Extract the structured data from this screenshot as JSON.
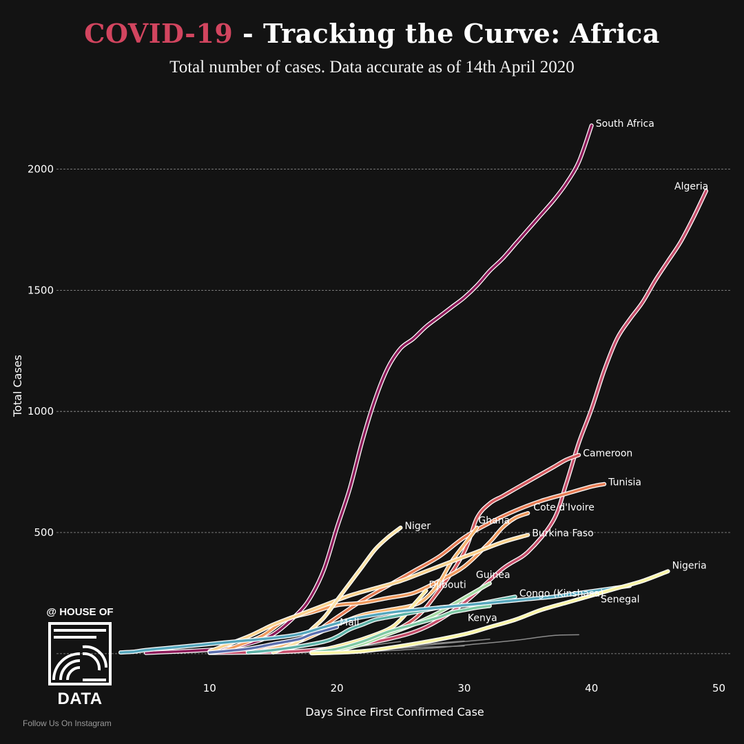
{
  "header": {
    "title_red": "COVID-19",
    "title_rest": " - Tracking the Curve: Africa",
    "subtitle": "Total number of cases. Data accurate as of 14th April 2020"
  },
  "branding": {
    "logo_top": "@ HOUSE OF",
    "logo_bottom": "DATA",
    "follow": "Follow Us On Instagram"
  },
  "chart_data": {
    "type": "line",
    "xlabel": "Days Since First Confirmed Case",
    "ylabel": "Total Cases",
    "xlim": [
      1,
      51
    ],
    "ylim": [
      -80,
      2300
    ],
    "xticks": [
      10,
      20,
      30,
      40,
      50
    ],
    "yticks": [
      500,
      1000,
      1500,
      2000
    ],
    "grid": "horizontal dashed",
    "series": [
      {
        "name": "Grey 1",
        "color": "#8c8c8c",
        "width": 1.5,
        "labeled": false,
        "x": [
          18,
          22,
          25,
          28,
          31,
          34,
          37,
          39
        ],
        "y": [
          2,
          8,
          15,
          25,
          40,
          55,
          75,
          78
        ]
      },
      {
        "name": "Grey 2",
        "color": "#8c8c8c",
        "width": 1.5,
        "labeled": false,
        "x": [
          18,
          21,
          24,
          27,
          30,
          32
        ],
        "y": [
          3,
          10,
          20,
          35,
          50,
          60
        ]
      },
      {
        "name": "Grey 3",
        "color": "#8c8c8c",
        "width": 1.5,
        "labeled": false,
        "x": [
          18,
          21,
          24,
          27,
          30
        ],
        "y": [
          4,
          12,
          25,
          40,
          52
        ]
      },
      {
        "name": "Grey 4",
        "color": "#8c8c8c",
        "width": 1.5,
        "labeled": false,
        "x": [
          19,
          22,
          25
        ],
        "y": [
          10,
          30,
          50
        ]
      },
      {
        "name": "Grey 5",
        "color": "#8c8c8c",
        "width": 1.5,
        "labeled": false,
        "x": [
          20,
          23,
          26,
          29,
          30
        ],
        "y": [
          5,
          15,
          25,
          30,
          32
        ]
      },
      {
        "name": "South Africa",
        "color": "#8e1b5a",
        "width": 3.5,
        "labeled": true,
        "label_dx": 6,
        "label_dy": 2,
        "x": [
          5,
          8,
          11,
          13,
          15,
          17,
          18,
          19,
          20,
          21,
          22,
          23,
          24,
          25,
          26,
          27,
          28,
          29,
          30,
          31,
          32,
          33,
          34,
          35,
          36,
          37,
          38,
          39,
          40
        ],
        "y": [
          3,
          10,
          20,
          40,
          80,
          170,
          240,
          350,
          520,
          680,
          880,
          1050,
          1180,
          1260,
          1300,
          1350,
          1390,
          1430,
          1470,
          1520,
          1580,
          1630,
          1690,
          1750,
          1810,
          1870,
          1940,
          2030,
          2180
        ]
      },
      {
        "name": "Algeria",
        "color": "#c64e6b",
        "width": 3.5,
        "labeled": true,
        "label_dx": -46,
        "label_dy": -2,
        "x": [
          10,
          16,
          20,
          24,
          27,
          30,
          33,
          35,
          37,
          38,
          39,
          40,
          41,
          42,
          43,
          44,
          45,
          46,
          47,
          48,
          49
        ],
        "y": [
          3,
          8,
          25,
          60,
          110,
          210,
          350,
          420,
          550,
          700,
          870,
          1010,
          1170,
          1300,
          1380,
          1450,
          1540,
          1620,
          1700,
          1800,
          1910
        ]
      },
      {
        "name": "Cameroon",
        "color": "#d45a5f",
        "width": 3.5,
        "labeled": true,
        "label_dx": 6,
        "label_dy": 2,
        "x": [
          20,
          23,
          26,
          28,
          30,
          31,
          32,
          33,
          34,
          35,
          36,
          37,
          38,
          39
        ],
        "y": [
          10,
          60,
          140,
          260,
          420,
          560,
          620,
          650,
          680,
          710,
          740,
          770,
          800,
          820
        ]
      },
      {
        "name": "Tunisia",
        "color": "#e77d55",
        "width": 3.5,
        "labeled": true,
        "label_dx": 6,
        "label_dy": 2,
        "x": [
          13,
          16,
          18,
          20,
          22,
          24,
          26,
          28,
          30,
          32,
          34,
          36,
          38,
          40,
          41
        ],
        "y": [
          10,
          40,
          80,
          150,
          220,
          280,
          340,
          400,
          480,
          540,
          590,
          630,
          660,
          690,
          700
        ]
      },
      {
        "name": "Cote d'Ivoire",
        "color": "#f09b60",
        "width": 3.5,
        "labeled": true,
        "label_dx": 8,
        "label_dy": -4,
        "x": [
          11,
          14,
          16,
          18,
          20,
          22,
          24,
          26,
          28,
          30,
          32,
          33,
          34,
          35
        ],
        "y": [
          10,
          70,
          140,
          170,
          200,
          210,
          230,
          250,
          300,
          360,
          460,
          520,
          560,
          580
        ]
      },
      {
        "name": "Ghana",
        "color": "#f7b774",
        "width": 3.5,
        "labeled": true,
        "label_dx": 2,
        "label_dy": -6,
        "x": [
          14,
          17,
          20,
          22,
          24,
          26,
          27,
          28,
          29,
          30,
          31
        ],
        "y": [
          10,
          50,
          120,
          160,
          180,
          200,
          230,
          290,
          380,
          450,
          520
        ]
      },
      {
        "name": "Burkina Faso",
        "color": "#fbd28f",
        "width": 3.5,
        "labeled": true,
        "label_dx": 6,
        "label_dy": 2,
        "x": [
          10,
          13,
          15,
          17,
          19,
          21,
          23,
          25,
          27,
          29,
          31,
          33,
          35
        ],
        "y": [
          10,
          70,
          120,
          160,
          200,
          240,
          270,
          300,
          340,
          380,
          420,
          460,
          490
        ]
      },
      {
        "name": "Niger",
        "color": "#fde3a8",
        "width": 3.5,
        "labeled": true,
        "label_dx": 6,
        "label_dy": 2,
        "x": [
          15,
          17,
          18,
          19,
          20,
          21,
          22,
          23,
          24,
          25
        ],
        "y": [
          5,
          50,
          100,
          150,
          220,
          290,
          360,
          430,
          480,
          520
        ]
      },
      {
        "name": "Djibouti",
        "color": "#fbeaa0",
        "width": 3.5,
        "labeled": true,
        "label_dx": 4,
        "label_dy": -4,
        "x": [
          18,
          20,
          22,
          24,
          25,
          26,
          27
        ],
        "y": [
          5,
          30,
          60,
          100,
          140,
          200,
          260
        ]
      },
      {
        "name": "Mali",
        "color": "#5c6fae",
        "width": 3.5,
        "labeled": true,
        "label_dx": 4,
        "label_dy": -2,
        "x": [
          10,
          13,
          15,
          17,
          18,
          19,
          20
        ],
        "y": [
          5,
          20,
          40,
          60,
          80,
          95,
          110
        ]
      },
      {
        "name": "Guinea",
        "color": "#a9dba5",
        "width": 3.5,
        "labeled": true,
        "label_dx": -20,
        "label_dy": -8,
        "x": [
          18,
          20,
          22,
          24,
          26,
          28,
          30,
          31,
          32
        ],
        "y": [
          5,
          15,
          40,
          80,
          120,
          170,
          230,
          260,
          290
        ]
      },
      {
        "name": "Congo (Kinshasa)",
        "color": "#5fb3a8",
        "width": 3.5,
        "labeled": true,
        "label_dx": 6,
        "label_dy": 0,
        "x": [
          13,
          15,
          17,
          19,
          20,
          21,
          22,
          23,
          24,
          25,
          26,
          27,
          28,
          29,
          30,
          31,
          32,
          33,
          34
        ],
        "y": [
          5,
          15,
          30,
          50,
          70,
          100,
          120,
          140,
          150,
          160,
          170,
          180,
          190,
          195,
          200,
          205,
          215,
          225,
          235
        ]
      },
      {
        "name": "Kenya",
        "color": "#7ec8a4",
        "width": 3.5,
        "labeled": true,
        "label_dx": -32,
        "label_dy": 22,
        "x": [
          18,
          20,
          22,
          24,
          26,
          28,
          29,
          30,
          31,
          32
        ],
        "y": [
          5,
          20,
          50,
          90,
          120,
          150,
          170,
          180,
          190,
          197
        ]
      },
      {
        "name": "Senegal",
        "color": "#56a7bd",
        "width": 3.5,
        "labeled": true,
        "label_dx": -42,
        "label_dy": 24,
        "x": [
          3,
          4,
          5,
          7,
          9,
          11,
          13,
          15,
          17,
          19,
          21,
          23,
          25,
          27,
          29,
          31,
          33,
          35,
          37,
          39,
          41,
          43
        ],
        "y": [
          5,
          8,
          15,
          25,
          35,
          45,
          55,
          65,
          80,
          110,
          140,
          160,
          175,
          185,
          195,
          205,
          215,
          225,
          235,
          250,
          265,
          280
        ]
      },
      {
        "name": "Nigeria",
        "color": "#fbf6a8",
        "width": 3.5,
        "labeled": true,
        "label_dx": 6,
        "label_dy": -4,
        "x": [
          18,
          22,
          26,
          30,
          32,
          34,
          36,
          38,
          40,
          42,
          44,
          46
        ],
        "y": [
          2,
          10,
          40,
          80,
          110,
          140,
          180,
          210,
          240,
          270,
          300,
          340
        ]
      }
    ]
  }
}
